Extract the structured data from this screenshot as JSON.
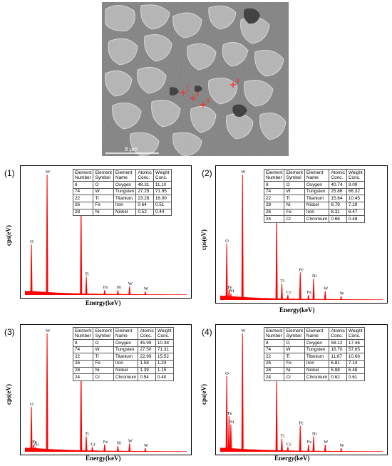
{
  "sem_image": {
    "point_labels": [
      "1",
      "2",
      "3",
      "4"
    ],
    "scale_label": "8 μm"
  },
  "axis_labels": {
    "y": "cps(eV)",
    "x": "Energy(keV)"
  },
  "table_headers": [
    [
      "Element",
      "Number"
    ],
    [
      "Element",
      "Symbol"
    ],
    [
      "Element",
      "Name"
    ],
    [
      "Atomic",
      "Conc."
    ],
    [
      "Weight",
      "Conc."
    ]
  ],
  "panels": [
    {
      "number": "(1)",
      "rows": [
        [
          "8",
          "O",
          "Oxygen",
          "48.31",
          "11.10"
        ],
        [
          "74",
          "W",
          "Tungsten",
          "27.25",
          "71.95"
        ],
        [
          "22",
          "Ti",
          "Titanium",
          "23.28",
          "16.00"
        ],
        [
          "26",
          "Fe",
          "Iron",
          "0.64",
          "0.51"
        ],
        [
          "28",
          "Ni",
          "Nickel",
          "0.52",
          "0.44"
        ]
      ]
    },
    {
      "number": "(2)",
      "rows": [
        [
          "8",
          "O",
          "Oxygen",
          "40.74",
          "9.09"
        ],
        [
          "74",
          "W",
          "Tungsten",
          "25.86",
          "66.32"
        ],
        [
          "22",
          "Ti",
          "Titanium",
          "15.64",
          "10.45"
        ],
        [
          "28",
          "Ni",
          "Nickel",
          "8.79",
          "7.19"
        ],
        [
          "26",
          "Fe",
          "Iron",
          "8.31",
          "6.47"
        ],
        [
          "24",
          "Cr",
          "Chromium",
          "0.66",
          "0.48"
        ]
      ]
    },
    {
      "number": "(3)",
      "rows": [
        [
          "8",
          "O",
          "Oxygen",
          "45.99",
          "10.38"
        ],
        [
          "74",
          "W",
          "Tungsten",
          "27.50",
          "71.31"
        ],
        [
          "22",
          "Ti",
          "Titanium",
          "22.99",
          "15.52"
        ],
        [
          "26",
          "Fe",
          "Iron",
          "1.58",
          "1.24"
        ],
        [
          "28",
          "Ni",
          "Nickel",
          "1.39",
          "1.15"
        ],
        [
          "24",
          "Cr",
          "Chromium",
          "0.54",
          "0.40"
        ]
      ]
    },
    {
      "number": "(4)",
      "rows": [
        [
          "8",
          "O",
          "Oxygen",
          "58.12",
          "17.46"
        ],
        [
          "74",
          "W",
          "Tungsten",
          "16.70",
          "57.65"
        ],
        [
          "22",
          "Ti",
          "Titanium",
          "11.87",
          "10.66"
        ],
        [
          "26",
          "Fe",
          "Iron",
          "6.81",
          "7.14"
        ],
        [
          "28",
          "Ni",
          "Nickel",
          "5.88",
          "6.48"
        ],
        [
          "24",
          "Cr",
          "Chromium",
          "0.62",
          "0.61"
        ]
      ]
    }
  ],
  "chart_data": [
    {
      "type": "spectrum",
      "color": "#ff0000",
      "peaks": [
        {
          "label": "O",
          "energy": 0.52,
          "height": 0.42
        },
        {
          "label": "W",
          "energy": 1.78,
          "height": 1.0
        },
        {
          "label": "Ti",
          "energy": 4.51,
          "height": 0.78
        },
        {
          "label": "Ti",
          "energy": 4.93,
          "height": 0.15
        },
        {
          "label": "Fe",
          "energy": 6.4,
          "height": 0.04
        },
        {
          "label": "Ni",
          "energy": 7.47,
          "height": 0.04
        },
        {
          "label": "W",
          "energy": 8.4,
          "height": 0.07
        },
        {
          "label": "W",
          "energy": 9.67,
          "height": 0.03
        }
      ]
    },
    {
      "type": "spectrum",
      "color": "#ff0000",
      "peaks": [
        {
          "label": "O",
          "energy": 0.52,
          "height": 0.45
        },
        {
          "label": "Fe",
          "energy": 0.7,
          "height": 0.08
        },
        {
          "label": "Ni",
          "energy": 0.85,
          "height": 0.05
        },
        {
          "label": "W",
          "energy": 1.78,
          "height": 1.0
        },
        {
          "label": "Ti",
          "energy": 4.51,
          "height": 0.67
        },
        {
          "label": "Ti",
          "energy": 4.93,
          "height": 0.13
        },
        {
          "label": "Cr",
          "energy": 5.41,
          "height": 0.04
        },
        {
          "label": "Fe",
          "energy": 6.4,
          "height": 0.22
        },
        {
          "label": "Fe",
          "energy": 7.06,
          "height": 0.04
        },
        {
          "label": "Ni",
          "energy": 7.47,
          "height": 0.17
        },
        {
          "label": "W",
          "energy": 8.4,
          "height": 0.07
        },
        {
          "label": "W",
          "energy": 9.67,
          "height": 0.03
        }
      ]
    },
    {
      "type": "spectrum",
      "color": "#ff0000",
      "peaks": [
        {
          "label": "O",
          "energy": 0.52,
          "height": 0.38
        },
        {
          "label": "Fe",
          "energy": 0.7,
          "height": 0.06
        },
        {
          "label": "Ni",
          "energy": 0.85,
          "height": 0.04
        },
        {
          "label": "W",
          "energy": 1.78,
          "height": 1.0
        },
        {
          "label": "Ti",
          "energy": 4.51,
          "height": 0.75
        },
        {
          "label": "Ti",
          "energy": 4.93,
          "height": 0.13
        },
        {
          "label": "Cr",
          "energy": 5.41,
          "height": 0.04
        },
        {
          "label": "Fe",
          "energy": 6.4,
          "height": 0.06
        },
        {
          "label": "Ni",
          "energy": 7.47,
          "height": 0.05
        },
        {
          "label": "W",
          "energy": 8.4,
          "height": 0.07
        },
        {
          "label": "W",
          "energy": 9.67,
          "height": 0.03
        }
      ]
    },
    {
      "type": "spectrum",
      "color": "#ff0000",
      "peaks": [
        {
          "label": "O",
          "energy": 0.52,
          "height": 0.64
        },
        {
          "label": "Fe",
          "energy": 0.7,
          "height": 0.3
        },
        {
          "label": "Ni",
          "energy": 0.85,
          "height": 0.23
        },
        {
          "label": "W",
          "energy": 1.78,
          "height": 1.0
        },
        {
          "label": "Ti",
          "energy": 4.51,
          "height": 0.6
        },
        {
          "label": "Ti",
          "energy": 4.93,
          "height": 0.11
        },
        {
          "label": "Cr",
          "energy": 5.41,
          "height": 0.04
        },
        {
          "label": "Fe",
          "energy": 6.4,
          "height": 0.22
        },
        {
          "label": "Fe",
          "energy": 7.06,
          "height": 0.06
        },
        {
          "label": "Ni",
          "energy": 7.47,
          "height": 0.13
        },
        {
          "label": "W",
          "energy": 8.4,
          "height": 0.06
        },
        {
          "label": "W",
          "energy": 9.67,
          "height": 0.03
        }
      ]
    }
  ]
}
